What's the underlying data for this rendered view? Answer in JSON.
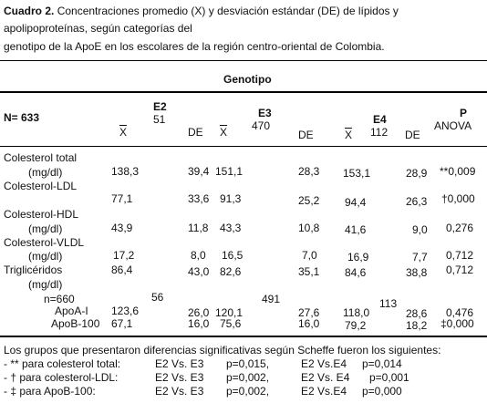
{
  "caption": {
    "label": "Cuadro 2.",
    "line1": "Concentraciones promedio (X) y desviación estándar (DE) de lípidos y",
    "line2": "apolipoproteínas, según categorías del",
    "line3": "genotipo de la ApoE en los escolares de la región centro-oriental de Colombia."
  },
  "table": {
    "group_header": "Genotipo",
    "n_total": "N= 633",
    "groups": [
      {
        "name": "E2",
        "n": "51"
      },
      {
        "name": "E3",
        "n": "470"
      },
      {
        "name": "E4",
        "n": "112"
      }
    ],
    "mean_symbol": "X",
    "de_label": "DE",
    "p_label": "P",
    "anova_label": "ANOVA",
    "rows": [
      {
        "label": "Colesterol total",
        "sub": "(mg/dl)",
        "e2x": "138,3",
        "e2de": "39,4",
        "e3x": "151,1",
        "e3de": "28,3",
        "e4x": "153,1",
        "e4de": "28,9",
        "p": "**0,009"
      },
      {
        "label": "Colesterol-LDL",
        "e2x": "77,1",
        "e2de": "33,6",
        "e3x": "91,3",
        "e3de": "25,2",
        "e4x": "94,4",
        "e4de": "26,3",
        "p": "†0,000"
      },
      {
        "label": "Colesterol-HDL",
        "sub": "(mg/dl)",
        "e2x": "43,9",
        "e2de": "11,8",
        "e3x": "43,3",
        "e3de": "10,8",
        "e4x": "41,6",
        "e4de": "9,0",
        "p": "0,276"
      },
      {
        "label": "Colesterol-VLDL",
        "sub": "(mg/dl)",
        "e2x": "17,2",
        "e2de": "8,0",
        "e3x": "16,5",
        "e3de": "7,0",
        "e4x": "16,9",
        "e4de": "7,7",
        "p": "0,712"
      },
      {
        "label": "Triglicéridos",
        "sub": "(mg/dl)",
        "e2x": "86,4",
        "e2de": "43,0",
        "e3x": "82,6",
        "e3de": "35,1",
        "e4x": "84,6",
        "e4de": "38,8",
        "p": "0,712"
      }
    ],
    "apo_n": {
      "label": "n=660",
      "e2": "56",
      "e3": "491",
      "e4": "113"
    },
    "apo_rows": [
      {
        "label": "ApoA-I",
        "e2x": "123,6",
        "e2de": "26,0",
        "e3x": "120,1",
        "e3de": "27,6",
        "e4x": "118,0",
        "e4de": "28,6",
        "p": "0,476"
      },
      {
        "label": "ApoB-100",
        "e2x": "67,1",
        "e2de": "16,0",
        "e3x": "75,6",
        "e3de": "16,0",
        "e4x": "79,2",
        "e4de": "18,2",
        "p": "‡0,000"
      }
    ]
  },
  "footnote": {
    "intro": "Los grupos que presentaron diferencias significativas según Scheffe fueron los siguientes:",
    "items": [
      {
        "mark": "- ** para colesterol total:",
        "c1": "E2 Vs. E3",
        "p1": "p=0,015,",
        "c2": "E2 Vs.E4",
        "p2": "p=0,014"
      },
      {
        "mark": "- † para colesterol-LDL:",
        "c1": "E2 Vs. E3",
        "p1": "p=0,002,",
        "c2": "E2 Vs. E4",
        "p2": "p=0,001"
      },
      {
        "mark": "- ‡ para ApoB-100:",
        "c1": "E2 Vs. E3",
        "p1": "p=0,002,",
        "c2": "E2 Vs.E4",
        "p2": "p=0,000"
      }
    ]
  }
}
